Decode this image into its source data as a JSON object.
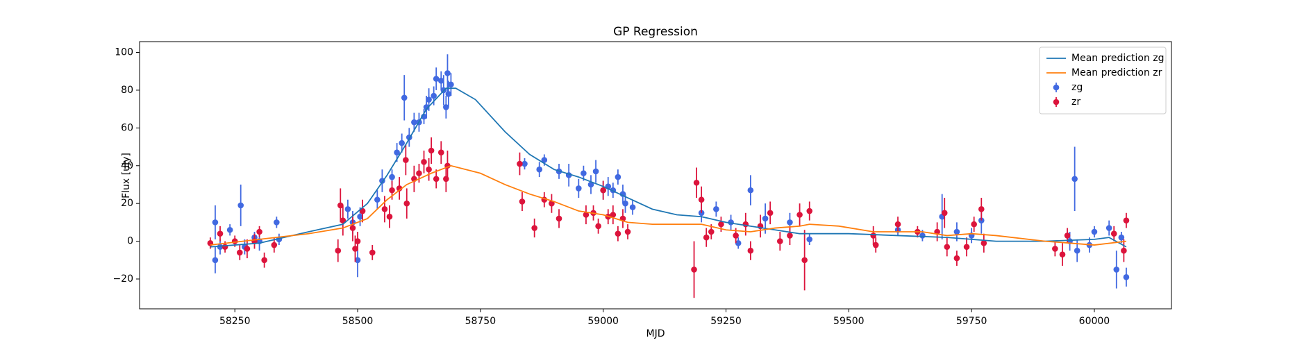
{
  "chart_data": {
    "type": "line",
    "title": "GP Regression",
    "x_label": "MJD",
    "y_label": "Flux [uJy]",
    "xlim": [
      58056,
      60157
    ],
    "ylim": [
      -35.8,
      105.7
    ],
    "xticks": [
      58250,
      58500,
      58750,
      59000,
      59250,
      59500,
      59750,
      60000
    ],
    "yticks": [
      {
        "value": -20,
        "label": "−20"
      },
      0,
      20,
      40,
      60,
      80,
      100
    ],
    "legend": "upper right",
    "series": [
      {
        "name": "Mean prediction zg",
        "color": "#1f77b4",
        "kind": "line",
        "x": [
          58200,
          58300,
          58400,
          58470,
          58520,
          58560,
          58600,
          58640,
          58680,
          58700,
          58740,
          58800,
          58850,
          58900,
          58950,
          59000,
          59050,
          59100,
          59150,
          59200,
          59250,
          59300,
          59350,
          59400,
          59450,
          59500,
          59600,
          59700,
          59800,
          59900,
          60000,
          60030,
          60065
        ],
        "values": [
          -3,
          -1,
          5,
          9,
          20,
          35,
          52,
          70,
          81,
          81,
          75,
          58,
          46,
          38,
          34,
          29,
          23,
          17,
          14,
          13,
          10,
          8,
          6,
          4,
          4,
          4,
          3,
          2,
          0,
          0,
          1,
          2,
          -3
        ]
      },
      {
        "name": "Mean prediction zr",
        "color": "#ff7f0e",
        "kind": "line",
        "x": [
          58200,
          58300,
          58400,
          58470,
          58520,
          58560,
          58600,
          58650,
          58690,
          58750,
          58800,
          58850,
          58900,
          58950,
          59000,
          59050,
          59100,
          59150,
          59200,
          59250,
          59300,
          59350,
          59400,
          59420,
          59480,
          59550,
          59650,
          59700,
          59750,
          59800,
          59900,
          59950,
          60000,
          60065
        ],
        "values": [
          -2,
          1,
          4,
          7,
          12,
          22,
          30,
          36,
          40,
          36,
          30,
          25,
          21,
          16,
          14,
          10,
          9,
          9,
          9,
          6,
          5,
          7,
          8,
          9,
          8,
          5,
          5,
          3,
          4,
          3,
          0,
          -1,
          -2,
          0
        ]
      },
      {
        "name": "zg",
        "color": "#4169e1",
        "kind": "errorbar",
        "x": [
          58210,
          58210,
          58220,
          58240,
          58262,
          58270,
          58290,
          58300,
          58335,
          58340,
          58480,
          58490,
          58500,
          58505,
          58540,
          58550,
          58570,
          58580,
          58590,
          58595,
          58605,
          58615,
          58625,
          58635,
          58640,
          58645,
          58655,
          58660,
          58670,
          58675,
          58680,
          58683,
          58685,
          58690,
          58840,
          58870,
          58880,
          58910,
          58930,
          58950,
          58960,
          58975,
          58985,
          59000,
          59010,
          59020,
          59030,
          59040,
          59045,
          59060,
          59200,
          59230,
          59260,
          59275,
          59300,
          59330,
          59380,
          59420,
          59600,
          59650,
          59690,
          59720,
          59750,
          59770,
          59950,
          59960,
          59965,
          59990,
          60000,
          60030,
          60045,
          60055,
          60065
        ],
        "values": [
          10,
          -10,
          -3,
          6,
          19,
          -3,
          2,
          0,
          10,
          1,
          17,
          10,
          -10,
          13,
          22,
          32,
          34,
          47,
          52,
          76,
          55,
          63,
          63,
          66,
          71,
          75,
          77,
          86,
          85,
          80,
          71,
          89,
          78,
          83,
          41,
          38,
          43,
          37,
          35,
          28,
          36,
          30,
          37,
          27,
          29,
          27,
          34,
          25,
          20,
          18,
          15,
          17,
          10,
          -1,
          27,
          12,
          10,
          1,
          6,
          3,
          13,
          5,
          3,
          11,
          0,
          33,
          -5,
          -2,
          5,
          7,
          -15,
          2,
          -19
        ],
        "errors": [
          9,
          7,
          4,
          3,
          11,
          4,
          3,
          5,
          3,
          3,
          5,
          6,
          9,
          5,
          5,
          6,
          4,
          5,
          5,
          12,
          5,
          5,
          5,
          4,
          6,
          6,
          5,
          6,
          5,
          8,
          6,
          10,
          7,
          6,
          3,
          4,
          3,
          4,
          6,
          5,
          4,
          5,
          6,
          5,
          5,
          4,
          4,
          5,
          5,
          4,
          5,
          4,
          4,
          3,
          8,
          8,
          5,
          3,
          3,
          3,
          12,
          5,
          4,
          7,
          5,
          17,
          6,
          4,
          3,
          4,
          10,
          3,
          5
        ]
      },
      {
        "name": "zr",
        "color": "#dc143c",
        "kind": "errorbar",
        "x": [
          58200,
          58220,
          58230,
          58250,
          58260,
          58275,
          58290,
          58300,
          58310,
          58330,
          58460,
          58465,
          58470,
          58490,
          58495,
          58500,
          58510,
          58530,
          58555,
          58565,
          58570,
          58585,
          58598,
          58600,
          58615,
          58625,
          58635,
          58645,
          58650,
          58660,
          58670,
          58680,
          58683,
          58830,
          58835,
          58860,
          58880,
          58895,
          58910,
          58965,
          58980,
          58990,
          59000,
          59010,
          59020,
          59030,
          59040,
          59050,
          59185,
          59190,
          59200,
          59210,
          59220,
          59240,
          59270,
          59290,
          59300,
          59320,
          59340,
          59360,
          59380,
          59400,
          59410,
          59420,
          59550,
          59555,
          59600,
          59640,
          59680,
          59695,
          59700,
          59720,
          59740,
          59755,
          59770,
          59775,
          59920,
          59935,
          59945,
          60040,
          60060,
          60065
        ],
        "values": [
          -1,
          4,
          -3,
          0,
          -6,
          -4,
          0,
          5,
          -10,
          -2,
          -5,
          19,
          11,
          7,
          -4,
          0,
          16,
          -6,
          17,
          13,
          27,
          28,
          43,
          20,
          33,
          36,
          42,
          38,
          48,
          33,
          47,
          33,
          40,
          41,
          21,
          7,
          22,
          20,
          12,
          14,
          15,
          8,
          27,
          13,
          14,
          4,
          12,
          5,
          -15,
          31,
          22,
          2,
          5,
          9,
          3,
          9,
          -5,
          8,
          15,
          0,
          3,
          14,
          -10,
          16,
          3,
          -2,
          9,
          5,
          5,
          15,
          -3,
          -9,
          -3,
          9,
          17,
          -1,
          -4,
          -7,
          3,
          4,
          -5,
          11
        ],
        "errors": [
          3,
          4,
          3,
          3,
          4,
          5,
          4,
          3,
          4,
          4,
          6,
          9,
          8,
          7,
          7,
          5,
          6,
          4,
          7,
          6,
          5,
          6,
          8,
          8,
          7,
          5,
          6,
          6,
          7,
          5,
          6,
          7,
          8,
          6,
          5,
          5,
          4,
          5,
          5,
          5,
          4,
          4,
          5,
          4,
          5,
          4,
          5,
          4,
          15,
          8,
          7,
          5,
          4,
          4,
          4,
          6,
          5,
          6,
          6,
          5,
          5,
          6,
          16,
          5,
          5,
          4,
          4,
          3,
          5,
          8,
          5,
          4,
          5,
          4,
          6,
          5,
          4,
          6,
          4,
          4,
          6,
          4
        ]
      }
    ]
  }
}
